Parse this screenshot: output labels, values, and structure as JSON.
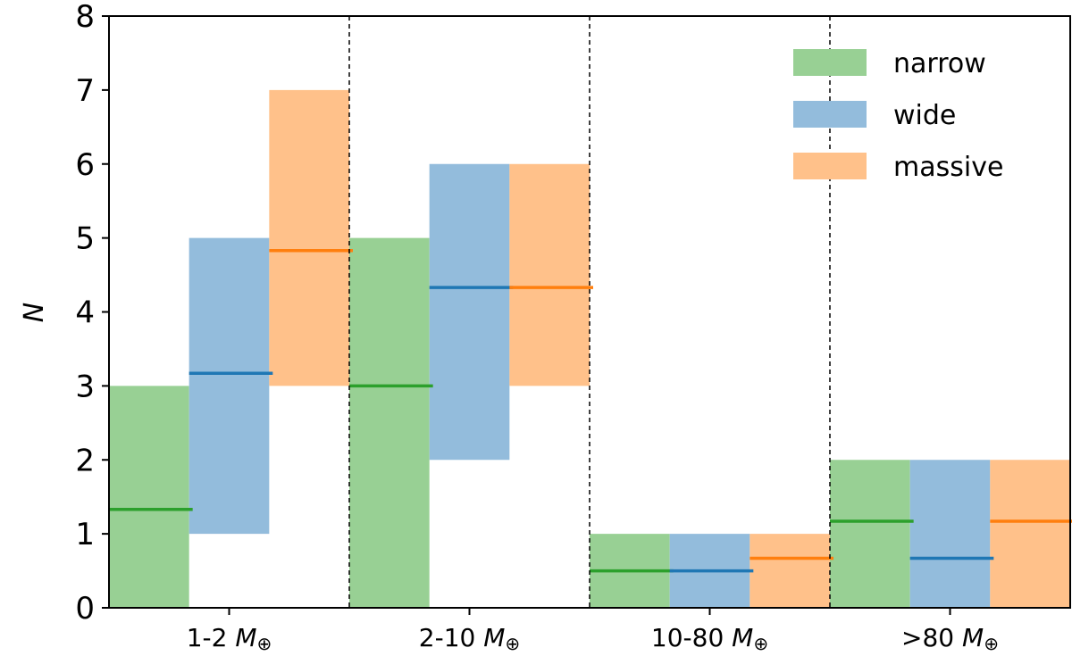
{
  "chart_data": {
    "type": "bar",
    "title": "",
    "xlabel": "",
    "ylabel": "N",
    "ylim": [
      0,
      8
    ],
    "yticks": [
      "0",
      "1",
      "2",
      "3",
      "4",
      "5",
      "6",
      "7",
      "8"
    ],
    "categories": [
      "1-2 M⊕",
      "2-10 M⊕",
      "10-80 M⊕",
      ">80 M⊕"
    ],
    "category_text": [
      "1-2",
      "2-10",
      "10-80",
      ">80"
    ],
    "category_unit": "M",
    "category_unit_sub": "⊕",
    "legend_position": "top-right",
    "series": [
      {
        "name": "narrow",
        "fill_color": "#98d094",
        "line_color": "#2ca02c",
        "lower": [
          0,
          0,
          0,
          0
        ],
        "upper": [
          3,
          5,
          1,
          2
        ],
        "mean": [
          1.33,
          3.0,
          0.5,
          1.17
        ]
      },
      {
        "name": "wide",
        "fill_color": "#93bcdc",
        "line_color": "#1f77b4",
        "lower": [
          1,
          2,
          0,
          0
        ],
        "upper": [
          5,
          6,
          1,
          2
        ],
        "mean": [
          3.17,
          4.33,
          0.5,
          0.67
        ]
      },
      {
        "name": "massive",
        "fill_color": "#ffc18a",
        "line_color": "#ff7f0e",
        "lower": [
          3,
          3,
          0,
          0
        ],
        "upper": [
          7,
          6,
          1,
          2
        ],
        "mean": [
          4.83,
          4.33,
          0.67,
          1.17
        ]
      }
    ]
  }
}
